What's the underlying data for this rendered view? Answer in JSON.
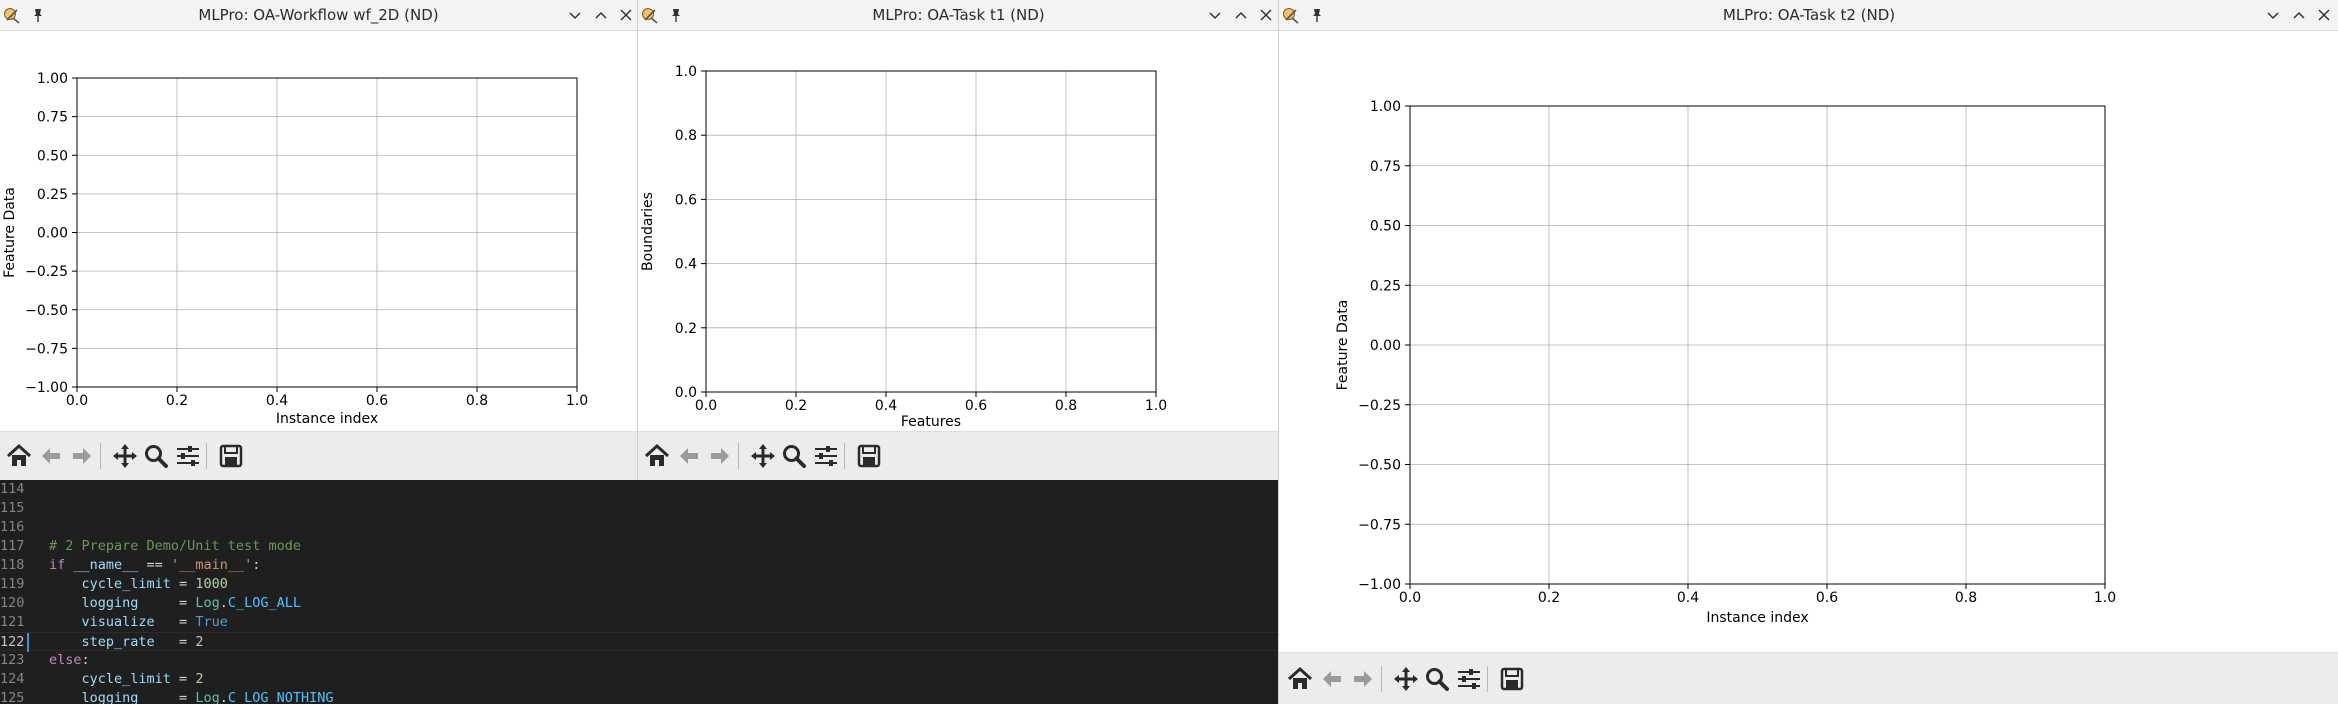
{
  "windows": [
    {
      "title": "MLPro: OA-Workflow wf_2D (ND)",
      "chart": {
        "type": "line",
        "title": "",
        "xlabel": "Instance index",
        "ylabel": "Feature Data",
        "xlim": [
          0.0,
          1.0
        ],
        "ylim": [
          -1.0,
          1.0
        ],
        "xticks": [
          "0.0",
          "0.2",
          "0.4",
          "0.6",
          "0.8",
          "1.0"
        ],
        "yticks": [
          "−1.00",
          "−0.75",
          "−0.50",
          "−0.25",
          "0.00",
          "0.25",
          "0.50",
          "0.75",
          "1.00"
        ],
        "grid": true,
        "series": []
      }
    },
    {
      "title": "MLPro: OA-Task t1 (ND)",
      "chart": {
        "type": "line",
        "title": "",
        "xlabel": "Features",
        "ylabel": "Boundaries",
        "xlim": [
          0.0,
          1.0
        ],
        "ylim": [
          0.0,
          1.0
        ],
        "xticks": [
          "0.0",
          "0.2",
          "0.4",
          "0.6",
          "0.8",
          "1.0"
        ],
        "yticks": [
          "0.0",
          "0.2",
          "0.4",
          "0.6",
          "0.8",
          "1.0"
        ],
        "grid": true,
        "series": []
      }
    },
    {
      "title": "MLPro: OA-Task t2 (ND)",
      "chart": {
        "type": "line",
        "title": "",
        "xlabel": "Instance index",
        "ylabel": "Feature Data",
        "xlim": [
          0.0,
          1.0
        ],
        "ylim": [
          -1.0,
          1.0
        ],
        "xticks": [
          "0.0",
          "0.2",
          "0.4",
          "0.6",
          "0.8",
          "1.0"
        ],
        "yticks": [
          "−1.00",
          "−0.75",
          "−0.50",
          "−0.25",
          "0.00",
          "0.25",
          "0.50",
          "0.75",
          "1.00"
        ],
        "grid": true,
        "series": []
      }
    }
  ],
  "chart_data": [
    {
      "type": "line",
      "xlabel": "Instance index",
      "ylabel": "Feature Data",
      "xlim": [
        0.0,
        1.0
      ],
      "ylim": [
        -1.0,
        1.0
      ],
      "grid": true,
      "series": []
    },
    {
      "type": "line",
      "xlabel": "Features",
      "ylabel": "Boundaries",
      "xlim": [
        0.0,
        1.0
      ],
      "ylim": [
        0.0,
        1.0
      ],
      "grid": true,
      "series": []
    },
    {
      "type": "line",
      "xlabel": "Instance index",
      "ylabel": "Feature Data",
      "xlim": [
        0.0,
        1.0
      ],
      "ylim": [
        -1.0,
        1.0
      ],
      "grid": true,
      "series": []
    }
  ],
  "toolbar_icons": [
    "home-icon",
    "back-icon",
    "forward-icon",
    "pan-icon",
    "zoom-icon",
    "configure-subplots-icon",
    "save-icon"
  ],
  "editor": {
    "current_line": "122",
    "lines": [
      {
        "no": "114",
        "tokens": []
      },
      {
        "no": "115",
        "tokens": []
      },
      {
        "no": "116",
        "tokens": []
      },
      {
        "no": "117",
        "tokens": [
          {
            "t": "# 2 Prepare Demo/Unit test mode",
            "c": "t-com"
          }
        ]
      },
      {
        "no": "118",
        "tokens": [
          {
            "t": "if ",
            "c": "t-kw"
          },
          {
            "t": "__name__",
            "c": "t-id"
          },
          {
            "t": " == ",
            "c": "t-op"
          },
          {
            "t": "'__main__'",
            "c": "t-str"
          },
          {
            "t": ":",
            "c": "t-op"
          }
        ]
      },
      {
        "no": "119",
        "tokens": [
          {
            "t": "    cycle_limit",
            "c": "t-id"
          },
          {
            "t": " = ",
            "c": "t-op"
          },
          {
            "t": "1000",
            "c": "t-num"
          }
        ]
      },
      {
        "no": "120",
        "tokens": [
          {
            "t": "    logging",
            "c": "t-id"
          },
          {
            "t": "     = ",
            "c": "t-op"
          },
          {
            "t": "Log",
            "c": "t-cls"
          },
          {
            "t": ".",
            "c": "t-op"
          },
          {
            "t": "C_LOG_ALL",
            "c": "t-attr"
          }
        ]
      },
      {
        "no": "121",
        "tokens": [
          {
            "t": "    visualize",
            "c": "t-id"
          },
          {
            "t": "   = ",
            "c": "t-op"
          },
          {
            "t": "True",
            "c": "t-const"
          }
        ]
      },
      {
        "no": "122",
        "tokens": [
          {
            "t": "    step_rate",
            "c": "t-id"
          },
          {
            "t": "   = ",
            "c": "t-op"
          },
          {
            "t": "2",
            "c": "t-num"
          }
        ]
      },
      {
        "no": "123",
        "tokens": [
          {
            "t": "else",
            "c": "t-kw"
          },
          {
            "t": ":",
            "c": "t-op"
          }
        ]
      },
      {
        "no": "124",
        "tokens": [
          {
            "t": "    cycle_limit",
            "c": "t-id"
          },
          {
            "t": " = ",
            "c": "t-op"
          },
          {
            "t": "2",
            "c": "t-num"
          }
        ]
      },
      {
        "no": "125",
        "tokens": [
          {
            "t": "    logging",
            "c": "t-id"
          },
          {
            "t": "     = ",
            "c": "t-op"
          },
          {
            "t": "Log",
            "c": "t-cls"
          },
          {
            "t": ".",
            "c": "t-op"
          },
          {
            "t": "C_LOG_NOTHING",
            "c": "t-attr"
          }
        ]
      }
    ]
  }
}
